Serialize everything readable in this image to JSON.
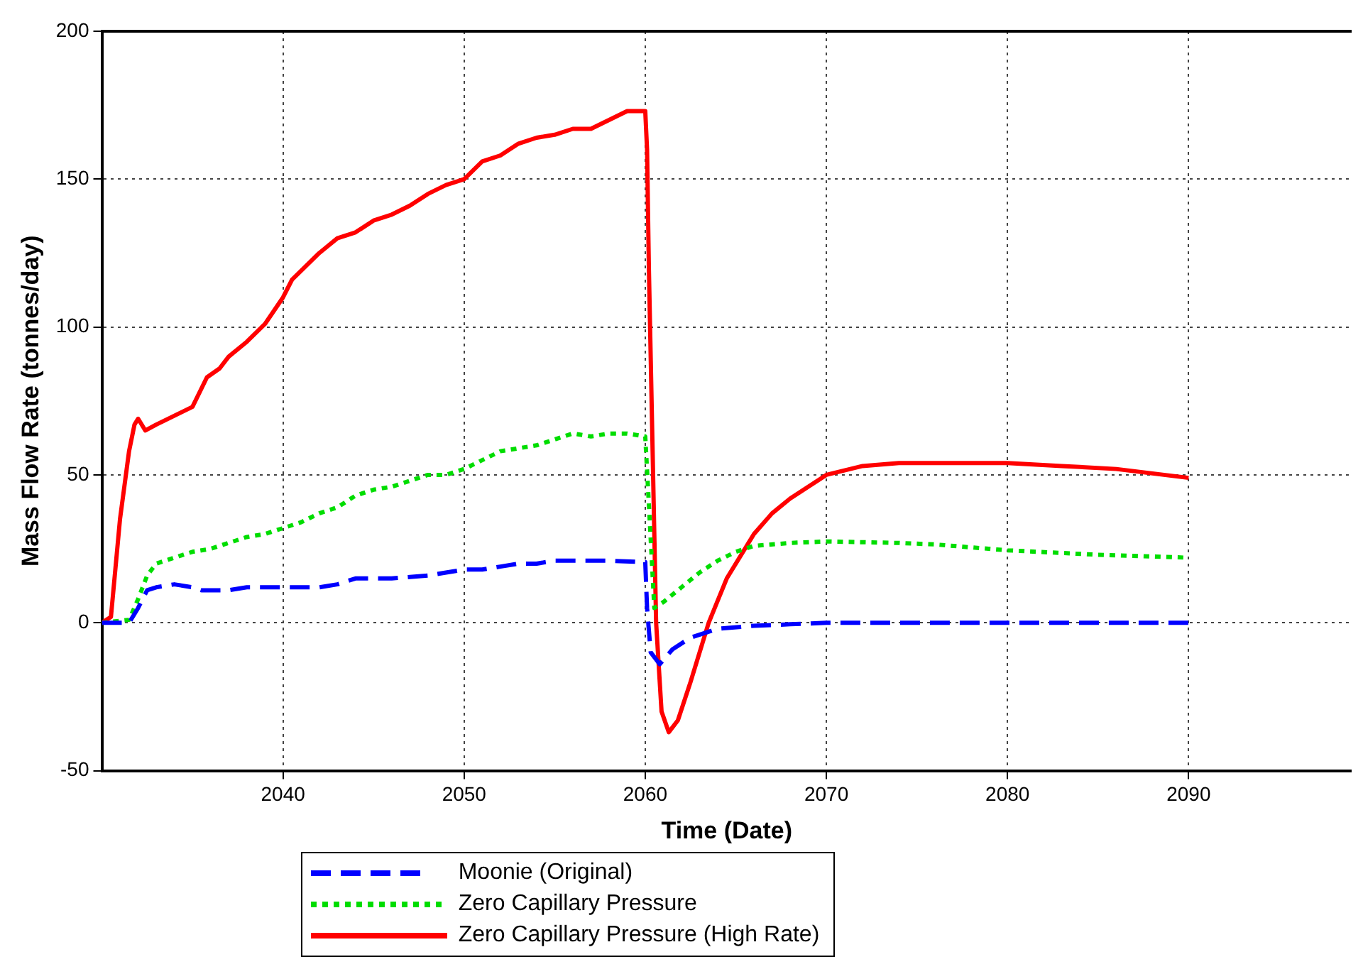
{
  "chart_data": {
    "type": "line",
    "xlabel": "Time (Date)",
    "ylabel": "Mass Flow Rate (tonnes/day)",
    "xlim": [
      2030,
      2099
    ],
    "xticks": [
      2040,
      2050,
      2060,
      2070,
      2080,
      2090
    ],
    "ylim": [
      -50,
      200
    ],
    "yticks": [
      -50,
      0,
      50,
      100,
      150,
      200
    ],
    "grid": true,
    "legend": "bottom",
    "marker": "none",
    "series": [
      {
        "name": "Moonie (Original)",
        "color": "#0000ff",
        "line_style": "dashed",
        "x": [
          2030,
          2031.5,
          2032,
          2032.5,
          2033,
          2034,
          2035,
          2035.5,
          2037,
          2038,
          2040,
          2042,
          2043,
          2044,
          2046,
          2048,
          2049,
          2050,
          2051,
          2052,
          2053,
          2054,
          2055,
          2056,
          2058,
          2060,
          2060.1,
          2060.3,
          2060.8,
          2061.5,
          2062.5,
          2064,
          2066,
          2068,
          2070,
          2090
        ],
        "values": [
          0,
          0,
          5,
          11,
          12,
          13,
          12,
          11,
          11,
          12,
          12,
          12,
          13,
          15,
          15,
          16,
          17,
          18,
          18,
          19,
          20,
          20,
          21,
          21,
          21,
          20.5,
          5,
          -10,
          -14,
          -9,
          -5,
          -2,
          -1,
          -0.5,
          0,
          0
        ]
      },
      {
        "name": "Zero Capillary Pressure",
        "color": "#00dd00",
        "line_style": "dotted",
        "x": [
          2030,
          2031.5,
          2032,
          2032.5,
          2033,
          2034,
          2035,
          2036,
          2037,
          2038,
          2039,
          2040,
          2041,
          2042,
          2043,
          2044,
          2045,
          2046,
          2047,
          2048,
          2049,
          2050,
          2051,
          2052,
          2053,
          2054,
          2055,
          2056,
          2057,
          2058,
          2059,
          2060,
          2060.2,
          2060.5,
          2061,
          2062,
          2063,
          2064,
          2065,
          2066,
          2068,
          2070,
          2074,
          2076,
          2080,
          2085,
          2090
        ],
        "values": [
          0,
          1,
          8,
          16,
          20,
          22,
          24,
          25,
          27,
          29,
          30,
          32,
          34,
          37,
          39,
          43,
          45,
          46,
          48,
          50,
          50,
          52,
          55,
          58,
          59,
          60,
          62,
          64,
          63,
          64,
          64,
          63,
          40,
          5,
          7,
          12,
          17,
          21,
          24,
          26,
          27,
          27.5,
          27,
          26.5,
          24.5,
          23,
          22
        ]
      },
      {
        "name": "Zero Capillary Pressure (High Rate)",
        "color": "#ff0000",
        "line_style": "solid",
        "x": [
          2030,
          2030.5,
          2031,
          2031.5,
          2031.8,
          2032,
          2032.4,
          2033,
          2034,
          2035,
          2035.8,
          2036.5,
          2037,
          2038,
          2039,
          2040,
          2040.5,
          2042,
          2043,
          2044,
          2045,
          2046,
          2047,
          2048,
          2049,
          2050,
          2051,
          2052,
          2053,
          2054,
          2055,
          2056,
          2057,
          2058,
          2059,
          2060,
          2060.1,
          2060.2,
          2060.4,
          2060.6,
          2060.9,
          2061.3,
          2061.8,
          2062.5,
          2063.5,
          2064.5,
          2066,
          2067,
          2068,
          2070,
          2072,
          2074,
          2077,
          2080,
          2083,
          2086,
          2090
        ],
        "values": [
          0,
          2,
          35,
          58,
          67,
          69,
          65,
          67,
          70,
          73,
          83,
          86,
          90,
          95,
          101,
          110,
          116,
          125,
          130,
          132,
          136,
          138,
          141,
          145,
          148,
          150,
          156,
          158,
          162,
          164,
          165,
          167,
          167,
          170,
          173,
          173,
          160,
          120,
          60,
          0,
          -30,
          -37,
          -33,
          -20,
          0,
          15,
          30,
          37,
          42,
          50,
          53,
          54,
          54,
          54,
          53,
          52,
          49
        ]
      }
    ]
  }
}
